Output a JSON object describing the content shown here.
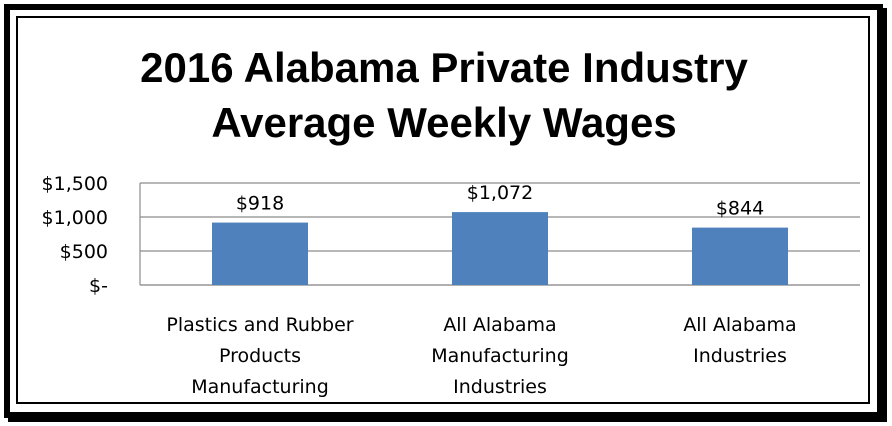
{
  "chart_data": {
    "type": "bar",
    "title_lines": [
      "2016 Alabama Private Industry",
      "Average Weekly Wages"
    ],
    "categories": [
      [
        "Plastics and Rubber",
        "Products",
        "Manufacturing"
      ],
      [
        "All Alabama",
        "Manufacturing",
        "Industries"
      ],
      [
        "All Alabama",
        "Industries"
      ]
    ],
    "values": [
      918,
      1072,
      844
    ],
    "data_labels": [
      "$918",
      "$1,072",
      "$844"
    ],
    "y_ticks": [
      {
        "value": 0,
        "label": "$-"
      },
      {
        "value": 500,
        "label": "$500"
      },
      {
        "value": 1000,
        "label": "$1,000"
      },
      {
        "value": 1500,
        "label": "$1,500"
      }
    ],
    "ylim": [
      0,
      1500
    ],
    "grid": true,
    "legend": "none",
    "bar_color": "#4f81bd"
  }
}
